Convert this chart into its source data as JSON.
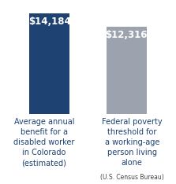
{
  "categories_left": "Average annual\nbenefit for a\ndisabled worker\nin Colorado\n(estimated)",
  "categories_right_main": "Federal poverty\nthreshold for\na working-age\nperson living\nalone",
  "categories_right_sub": "(U.S. Census Bureau)",
  "values": [
    14184,
    12316
  ],
  "labels": [
    "$14,184",
    "$12,316"
  ],
  "bar_colors": [
    "#1e4272",
    "#9ca3af"
  ],
  "background_color": "#ffffff",
  "label_color": "#ffffff",
  "text_color": "#1e4272",
  "sub_text_color": "#444444",
  "ylim": [
    0,
    15500
  ],
  "bar_width": 0.52,
  "label_fontsize": 8.5,
  "tick_fontsize": 7.0,
  "sub_fontsize": 5.5
}
